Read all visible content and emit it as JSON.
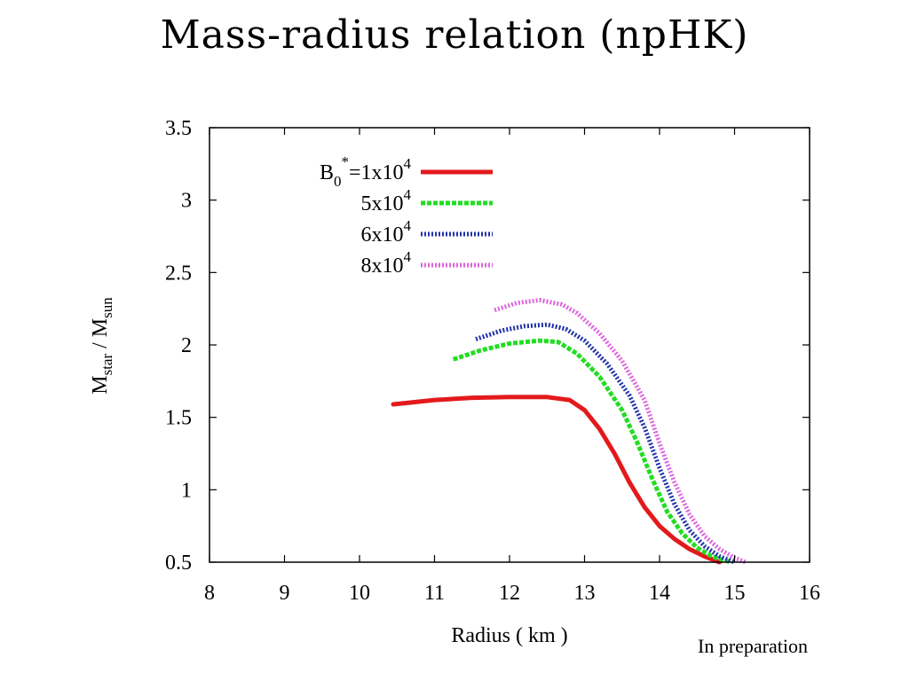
{
  "slide": {
    "title": "Mass-radius relation (npHK)",
    "note": "In preparation"
  },
  "chart_data": {
    "type": "line",
    "title": "",
    "xlabel": "Radius ( km )",
    "ylabel": {
      "main": "M",
      "sub1": "star",
      "sep": " / M",
      "sub2": "sun"
    },
    "xlim": [
      8,
      16
    ],
    "ylim": [
      0.5,
      3.5
    ],
    "xticks": [
      8,
      9,
      10,
      11,
      12,
      13,
      14,
      15,
      16
    ],
    "yticks": [
      0.5,
      1,
      1.5,
      2,
      2.5,
      3,
      3.5
    ],
    "ytick_labels": [
      "0.5",
      "1",
      "1.5",
      "2",
      "2.5",
      "3",
      "3.5"
    ],
    "grid": false,
    "legend_position": "top-left",
    "series": [
      {
        "name": "B0*=1x10^4",
        "label": {
          "prefix": "B",
          "sub": "0",
          "sup": "*",
          "coef": "=1x10",
          "exp": "4"
        },
        "color": "#e31a1c",
        "style": "solid",
        "x": [
          10.45,
          11.0,
          11.5,
          12.0,
          12.5,
          12.8,
          13.0,
          13.2,
          13.4,
          13.6,
          13.8,
          14.0,
          14.2,
          14.4,
          14.6,
          14.8
        ],
        "y": [
          1.59,
          1.62,
          1.635,
          1.64,
          1.64,
          1.62,
          1.55,
          1.42,
          1.25,
          1.05,
          0.88,
          0.75,
          0.66,
          0.59,
          0.54,
          0.5
        ]
      },
      {
        "name": "5x10^4",
        "label": {
          "prefix": "",
          "sub": "",
          "sup": "",
          "coef": "5x10",
          "exp": "4"
        },
        "color": "#22dd22",
        "style": "dashed",
        "x": [
          11.25,
          11.6,
          12.0,
          12.4,
          12.65,
          12.9,
          13.2,
          13.5,
          13.7,
          13.9,
          14.1,
          14.3,
          14.5,
          14.7,
          14.95
        ],
        "y": [
          1.9,
          1.96,
          2.01,
          2.03,
          2.02,
          1.94,
          1.78,
          1.55,
          1.33,
          1.08,
          0.85,
          0.7,
          0.6,
          0.54,
          0.5
        ]
      },
      {
        "name": "6x10^4",
        "label": {
          "prefix": "",
          "sub": "",
          "sup": "",
          "coef": "6x10",
          "exp": "4"
        },
        "color": "#2233aa",
        "style": "dotted",
        "x": [
          11.55,
          11.9,
          12.2,
          12.5,
          12.75,
          13.0,
          13.3,
          13.6,
          13.8,
          14.0,
          14.2,
          14.4,
          14.6,
          14.8,
          15.0
        ],
        "y": [
          2.04,
          2.1,
          2.13,
          2.14,
          2.11,
          2.03,
          1.87,
          1.65,
          1.43,
          1.15,
          0.9,
          0.72,
          0.61,
          0.54,
          0.5
        ]
      },
      {
        "name": "8x10^4",
        "label": {
          "prefix": "",
          "sub": "",
          "sup": "",
          "coef": "8x10",
          "exp": "4"
        },
        "color": "#dd66dd",
        "style": "dotted",
        "x": [
          11.8,
          12.1,
          12.4,
          12.7,
          12.9,
          13.2,
          13.5,
          13.8,
          14.0,
          14.2,
          14.4,
          14.6,
          14.8,
          15.0,
          15.15
        ],
        "y": [
          2.24,
          2.29,
          2.31,
          2.28,
          2.22,
          2.08,
          1.89,
          1.62,
          1.32,
          1.05,
          0.83,
          0.68,
          0.59,
          0.53,
          0.5
        ]
      }
    ]
  }
}
